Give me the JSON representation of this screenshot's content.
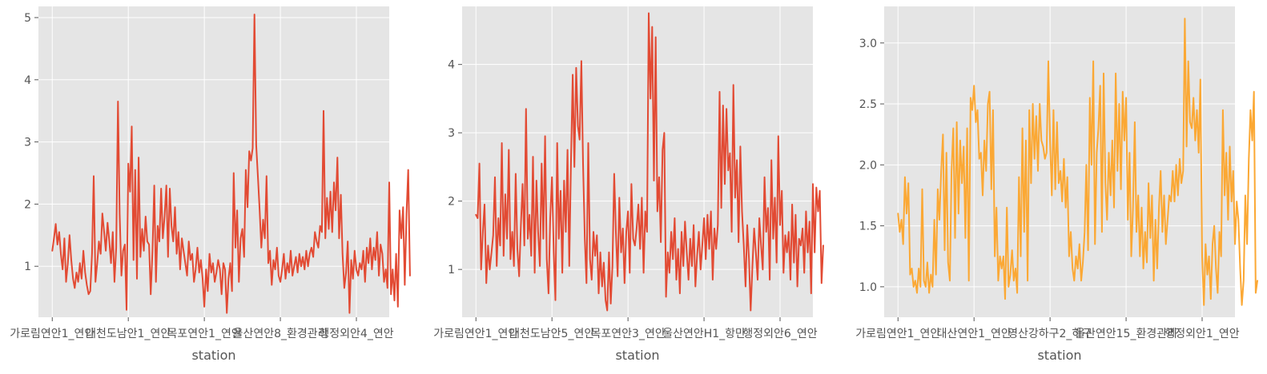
{
  "chart_data": [
    {
      "type": "line",
      "xlabel": "station",
      "ylabel": "",
      "title": "",
      "ylim": [
        0.18,
        5.18
      ],
      "yticks": [
        1,
        2,
        3,
        4,
        5
      ],
      "yticklabels": [
        "1",
        "2",
        "3",
        "4",
        "5"
      ],
      "grid": true,
      "color": "#E24A33",
      "xlim": [
        -8,
        195
      ],
      "xticks": [
        0,
        44,
        88,
        132,
        176
      ],
      "xticklabels": [
        "가로림연안1_연안",
        "대천도남안1_연안",
        "목포연안1_연안",
        "울산연안8_환경관리",
        "행정외안4_연안"
      ],
      "series": [
        {
          "name": "",
          "y": [
            1.25,
            1.45,
            1.68,
            1.35,
            1.55,
            1.2,
            0.95,
            1.45,
            0.75,
            1.05,
            1.5,
            1.1,
            0.8,
            0.65,
            0.9,
            0.75,
            1.05,
            0.8,
            1.25,
            0.9,
            0.7,
            0.55,
            0.6,
            1.2,
            2.45,
            0.75,
            1.05,
            1.4,
            1.2,
            1.85,
            1.55,
            1.25,
            1.7,
            1.4,
            1.05,
            1.55,
            0.75,
            1.3,
            3.65,
            1.85,
            0.85,
            1.25,
            1.35,
            0.3,
            2.65,
            2.2,
            3.25,
            1.1,
            2.55,
            0.8,
            2.75,
            1.15,
            1.6,
            1.25,
            1.8,
            1.4,
            1.35,
            0.55,
            1.25,
            2.3,
            0.75,
            1.65,
            1.4,
            2.25,
            1.45,
            1.8,
            2.3,
            1.15,
            2.25,
            1.65,
            1.4,
            1.95,
            1.2,
            1.55,
            0.95,
            1.45,
            1.25,
            1.05,
            0.85,
            1.4,
            1.1,
            1.2,
            0.75,
            0.95,
            1.3,
            0.9,
            1.1,
            0.8,
            0.35,
            0.95,
            0.6,
            1.2,
            0.9,
            1.05,
            0.75,
            0.9,
            1.1,
            0.95,
            0.55,
            1.05,
            0.95,
            0.25,
            0.8,
            1.05,
            0.6,
            2.5,
            1.3,
            1.9,
            0.75,
            1.45,
            1.6,
            1.15,
            2.55,
            1.95,
            2.85,
            2.7,
            2.9,
            5.05,
            2.95,
            2.45,
            1.9,
            1.3,
            1.75,
            1.45,
            2.45,
            1.05,
            1.25,
            0.7,
            1.1,
            0.95,
            1.3,
            0.85,
            0.75,
            0.95,
            1.2,
            0.8,
            1.05,
            0.9,
            1.25,
            0.85,
            1.0,
            1.15,
            0.9,
            1.2,
            1.0,
            1.15,
            0.95,
            1.25,
            1.0,
            1.2,
            1.3,
            1.15,
            1.55,
            1.4,
            1.3,
            1.65,
            1.55,
            3.5,
            1.45,
            2.1,
            1.6,
            2.2,
            1.55,
            2.35,
            1.9,
            2.75,
            1.45,
            2.15,
            1.2,
            0.65,
            0.9,
            1.4,
            0.25,
            1.1,
            0.8,
            1.25,
            0.95,
            0.85,
            1.05,
            0.95,
            1.25,
            0.75,
            1.3,
            1.05,
            1.45,
            0.95,
            1.3,
            1.1,
            1.55,
            0.85,
            1.35,
            1.2,
            0.75,
            0.95,
            0.65,
            2.35,
            0.55,
            0.95,
            0.45,
            1.2,
            0.35,
            1.9,
            1.45,
            1.95,
            0.7,
            1.85,
            2.55,
            0.85
          ]
        }
      ]
    },
    {
      "type": "line",
      "xlabel": "station",
      "ylabel": "",
      "title": "",
      "ylim": [
        0.3,
        4.85
      ],
      "yticks": [
        1,
        2,
        3,
        4
      ],
      "yticklabels": [
        "1",
        "2",
        "3",
        "4"
      ],
      "grid": true,
      "color": "#E24A33",
      "xlim": [
        -8,
        195
      ],
      "xticks": [
        0,
        44,
        88,
        132,
        176
      ],
      "xticklabels": [
        "가로림연안1_연안",
        "대천도남안5_연안",
        "목포연안3_연안",
        "울산연안H1_항만",
        "행정외안6_연안"
      ],
      "series": [
        {
          "name": "",
          "y": [
            1.8,
            1.75,
            2.55,
            1.0,
            1.55,
            1.95,
            0.8,
            1.35,
            1.0,
            1.25,
            1.5,
            2.35,
            1.05,
            1.75,
            1.35,
            2.85,
            1.2,
            2.1,
            1.45,
            2.75,
            1.15,
            1.55,
            1.05,
            2.4,
            1.3,
            0.9,
            1.65,
            2.25,
            1.35,
            3.35,
            1.45,
            1.8,
            1.2,
            2.65,
            0.95,
            2.3,
            1.55,
            1.05,
            2.55,
            1.45,
            2.95,
            1.15,
            0.65,
            1.75,
            2.35,
            1.25,
            0.55,
            2.85,
            1.45,
            2.15,
            0.95,
            2.3,
            1.55,
            2.75,
            1.05,
            2.55,
            3.85,
            2.5,
            3.95,
            3.1,
            2.9,
            4.05,
            2.55,
            1.45,
            0.8,
            2.85,
            1.15,
            0.85,
            1.55,
            1.2,
            1.5,
            0.65,
            1.25,
            0.75,
            1.1,
            0.55,
            0.4,
            1.25,
            0.5,
            1.05,
            2.4,
            1.55,
            0.9,
            2.05,
            1.25,
            1.6,
            0.8,
            1.55,
            1.85,
            0.95,
            2.25,
            1.45,
            1.35,
            1.6,
            1.95,
            1.3,
            2.05,
            0.95,
            1.85,
            1.55,
            4.75,
            3.5,
            4.55,
            2.3,
            4.4,
            1.85,
            2.35,
            1.4,
            2.75,
            3.0,
            0.6,
            1.25,
            0.95,
            1.55,
            1.15,
            1.75,
            0.85,
            1.3,
            0.65,
            1.55,
            1.05,
            1.7,
            1.25,
            0.85,
            1.45,
            1.05,
            1.65,
            0.75,
            1.2,
            1.55,
            1.0,
            1.35,
            1.75,
            1.15,
            1.8,
            1.3,
            1.85,
            0.85,
            1.6,
            1.3,
            1.65,
            3.6,
            1.9,
            3.4,
            2.25,
            3.35,
            2.45,
            2.7,
            1.55,
            3.7,
            2.05,
            2.6,
            1.4,
            2.8,
            1.85,
            1.35,
            0.75,
            1.65,
            1.15,
            0.4,
            1.05,
            1.6,
            1.25,
            0.85,
            1.75,
            1.35,
            1.0,
            2.35,
            1.55,
            1.9,
            0.85,
            2.6,
            1.45,
            2.05,
            1.1,
            2.95,
            1.65,
            2.15,
            0.95,
            1.5,
            1.25,
            1.55,
            0.85,
            1.95,
            1.1,
            1.8,
            0.75,
            1.45,
            1.35,
            1.6,
            0.95,
            1.85,
            1.25,
            1.7,
            0.65,
            2.25,
            1.25,
            2.2,
            1.85,
            2.15,
            0.8,
            1.35
          ]
        }
      ]
    },
    {
      "type": "line",
      "xlabel": "station",
      "ylabel": "",
      "title": "",
      "ylim": [
        0.75,
        3.3
      ],
      "yticks": [
        1.0,
        1.5,
        2.0,
        2.5,
        3.0
      ],
      "yticklabels": [
        "1.0",
        "1.5",
        "2.0",
        "2.5",
        "3.0"
      ],
      "grid": true,
      "color": "#FBA834",
      "xlim": [
        -8,
        195
      ],
      "xticks": [
        0,
        44,
        88,
        132,
        176
      ],
      "xticklabels": [
        "가로림연안1_연안",
        "대산연안1_연안",
        "영산강하구2_하구",
        "울산연안15_환경관리",
        "행정외안1_연안"
      ],
      "series": [
        {
          "name": "",
          "y": [
            1.6,
            1.45,
            1.55,
            1.35,
            1.9,
            1.6,
            1.85,
            1.1,
            1.15,
            1.0,
            1.05,
            0.95,
            1.15,
            1.0,
            1.8,
            1.05,
            1.0,
            1.2,
            0.95,
            1.1,
            1.0,
            1.55,
            1.1,
            1.8,
            1.55,
            1.95,
            2.25,
            1.3,
            2.1,
            1.2,
            1.05,
            1.95,
            2.3,
            1.4,
            2.35,
            1.6,
            2.2,
            1.85,
            2.15,
            1.4,
            2.3,
            1.05,
            2.55,
            2.45,
            2.65,
            2.35,
            2.45,
            2.05,
            2.1,
            1.75,
            2.2,
            1.95,
            2.5,
            2.6,
            1.8,
            2.45,
            1.25,
            1.65,
            1.05,
            1.25,
            1.15,
            1.25,
            0.9,
            1.65,
            1.0,
            1.1,
            1.3,
            1.05,
            1.15,
            0.95,
            1.9,
            1.25,
            2.3,
            1.45,
            2.2,
            1.05,
            2.45,
            1.85,
            2.5,
            2.05,
            2.4,
            1.95,
            2.5,
            2.2,
            2.15,
            2.05,
            2.1,
            2.85,
            2.2,
            1.75,
            2.45,
            1.8,
            2.35,
            1.85,
            1.95,
            1.7,
            2.05,
            1.65,
            1.9,
            1.25,
            1.45,
            1.15,
            1.05,
            1.25,
            1.15,
            1.35,
            1.05,
            1.2,
            1.45,
            2.0,
            1.3,
            2.55,
            2.0,
            2.85,
            1.35,
            2.1,
            2.3,
            2.65,
            1.45,
            2.75,
            1.85,
            1.55,
            2.1,
            1.75,
            2.2,
            1.65,
            2.75,
            1.95,
            2.5,
            1.8,
            2.6,
            2.2,
            2.55,
            1.55,
            2.1,
            1.25,
            1.65,
            2.35,
            1.45,
            1.75,
            1.25,
            1.65,
            1.15,
            1.45,
            1.2,
            1.85,
            1.4,
            1.75,
            1.05,
            1.55,
            1.15,
            1.65,
            1.95,
            1.45,
            1.75,
            1.35,
            1.55,
            1.75,
            1.7,
            1.95,
            1.7,
            2.0,
            1.75,
            2.05,
            1.85,
            1.95,
            3.2,
            2.15,
            2.85,
            2.35,
            2.3,
            2.55,
            2.2,
            2.45,
            2.1,
            2.7,
            1.25,
            0.85,
            1.35,
            1.1,
            1.25,
            0.9,
            1.35,
            1.5,
            1.15,
            0.95,
            1.45,
            1.25,
            2.45,
            1.75,
            2.1,
            1.55,
            2.15,
            1.7,
            1.95,
            1.35,
            1.7,
            1.55,
            1.15,
            0.85,
            1.05,
            1.75,
            1.35,
            2.05,
            2.45,
            2.2,
            2.6,
            0.95,
            1.05
          ]
        }
      ]
    }
  ]
}
